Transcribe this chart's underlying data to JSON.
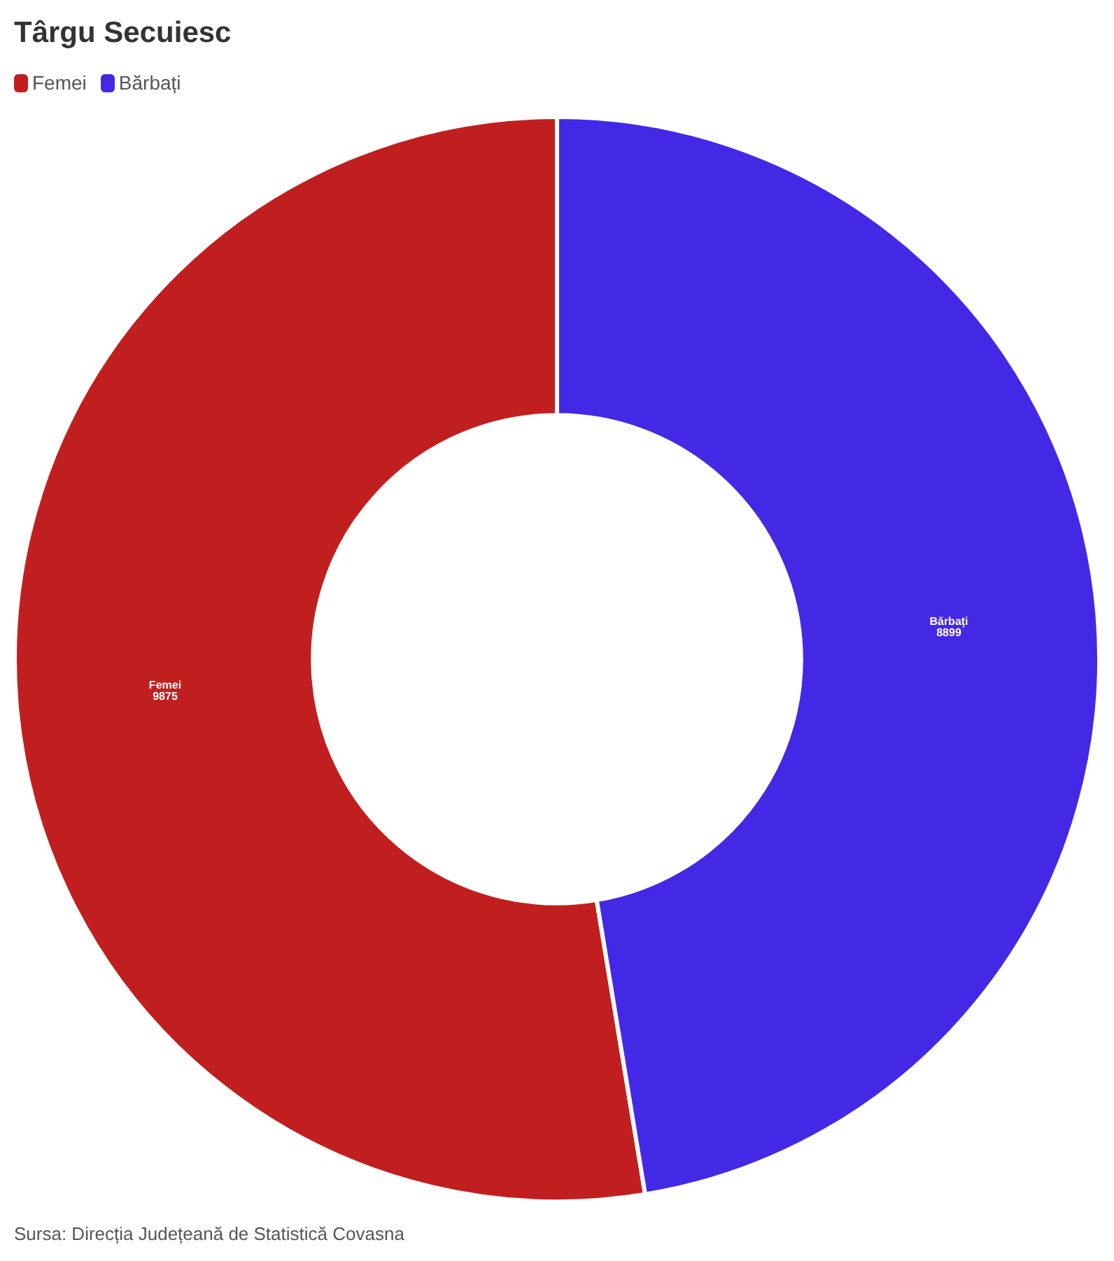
{
  "chart_data": {
    "type": "donut",
    "title": "Târgu Secuiesc",
    "categories": [
      "Femei",
      "Bărbați"
    ],
    "values": [
      9875,
      8899
    ],
    "colors": [
      "#c11f1f",
      "#4329e6"
    ],
    "legend": "top left",
    "data_labels": true,
    "annotations": [
      "Sursa: Direcția Județeană de Statistică Covasna"
    ]
  }
}
